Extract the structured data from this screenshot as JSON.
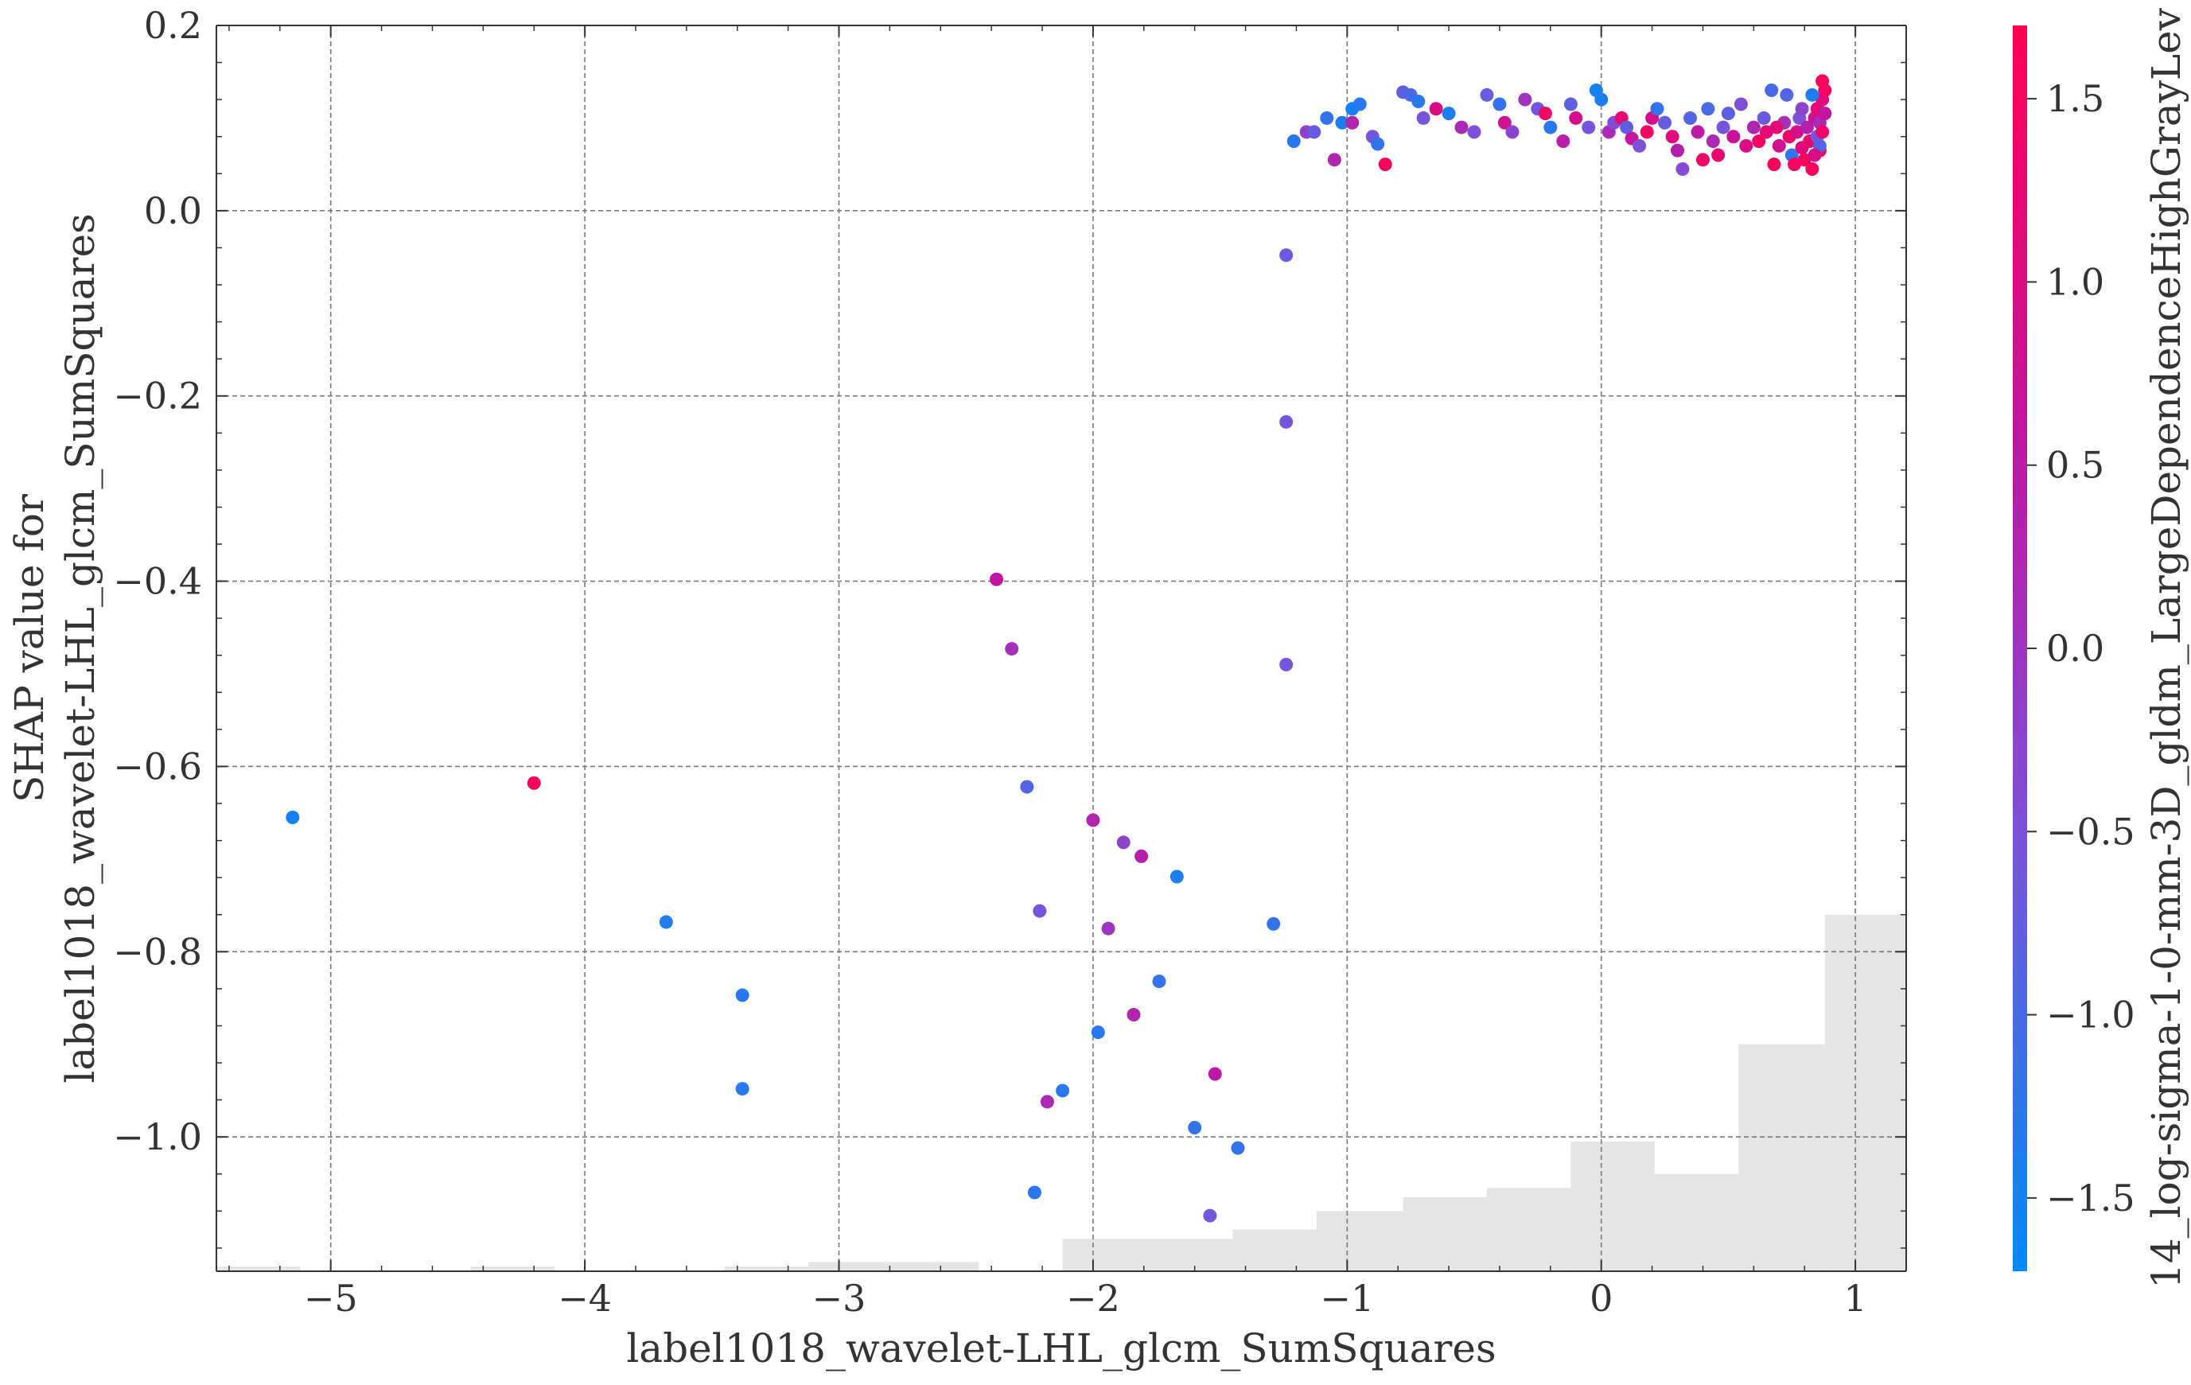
{
  "chart_data": {
    "type": "scatter",
    "title": "",
    "xlabel": "label1018_wavelet-LHL_glcm_SumSquares",
    "ylabel_line1": "SHAP value for",
    "ylabel_line2": "label1018_wavelet-LHL_glcm_SumSquares",
    "colorbar_label": "14_log-sigma-1-0-mm-3D_gldm_LargeDependenceHighGrayLev",
    "xlim": [
      -5.45,
      1.2
    ],
    "ylim": [
      -1.145,
      0.2
    ],
    "grid": true,
    "x_ticks": [
      -5,
      -4,
      -3,
      -2,
      -1,
      0,
      1
    ],
    "x_tick_labels": [
      "−5",
      "−4",
      "−3",
      "−2",
      "−1",
      "0",
      "1"
    ],
    "y_ticks": [
      0.2,
      0.0,
      -0.2,
      -0.4,
      -0.6,
      -0.8,
      -1.0
    ],
    "y_tick_labels": [
      "0.2",
      "0.0",
      "−0.2",
      "−0.4",
      "−0.6",
      "−0.8",
      "−1.0"
    ],
    "colorbar": {
      "range": [
        -1.7,
        1.7
      ],
      "ticks": [
        1.5,
        1.0,
        0.5,
        0.0,
        -0.5,
        -1.0,
        -1.5
      ],
      "tick_labels": [
        "1.5",
        "1.0",
        "0.5",
        "0.0",
        "−0.5",
        "−1.0",
        "−1.5"
      ],
      "colors": [
        "#008bfb",
        "#7c52d8",
        "#c4139e",
        "#ff0052"
      ]
    },
    "histogram": {
      "color": "#e5e5e5",
      "bin_edges": [
        -5.45,
        -5.12,
        -4.45,
        -4.12,
        -3.45,
        -3.12,
        -2.45,
        -2.12,
        -1.78,
        -1.45,
        -1.12,
        -0.78,
        -0.45,
        -0.12,
        0.21,
        0.54,
        0.88,
        1.2
      ],
      "heights_y": [
        -1.14,
        null,
        -1.14,
        null,
        -1.14,
        -1.135,
        null,
        -1.11,
        -1.11,
        -1.1,
        -1.08,
        -1.065,
        -1.055,
        -1.005,
        -1.04,
        -0.9,
        -0.76,
        -1.005
      ]
    },
    "points": [
      [
        -5.15,
        -0.655,
        -1.5
      ],
      [
        -4.2,
        -0.618,
        1.6
      ],
      [
        -3.68,
        -0.768,
        -1.4
      ],
      [
        -3.38,
        -0.847,
        -1.3
      ],
      [
        -3.38,
        -0.948,
        -1.3
      ],
      [
        -2.38,
        -0.398,
        0.6
      ],
      [
        -2.32,
        -0.473,
        0.1
      ],
      [
        -2.26,
        -0.622,
        -0.9
      ],
      [
        -2.21,
        -0.756,
        -0.6
      ],
      [
        -2.18,
        -0.962,
        0.2
      ],
      [
        -2.12,
        -0.95,
        -1.3
      ],
      [
        -2.23,
        -1.06,
        -1.3
      ],
      [
        -2.0,
        -0.658,
        0.3
      ],
      [
        -1.98,
        -0.887,
        -1.3
      ],
      [
        -1.94,
        -0.775,
        0.0
      ],
      [
        -1.88,
        -0.682,
        -0.3
      ],
      [
        -1.84,
        -0.868,
        0.3
      ],
      [
        -1.81,
        -0.697,
        0.4
      ],
      [
        -1.74,
        -0.832,
        -1.2
      ],
      [
        -1.67,
        -0.719,
        -1.4
      ],
      [
        -1.6,
        -0.99,
        -1.2
      ],
      [
        -1.54,
        -1.085,
        -0.6
      ],
      [
        -1.52,
        -0.932,
        0.5
      ],
      [
        -1.43,
        -1.012,
        -1.2
      ],
      [
        -1.29,
        -0.77,
        -1.2
      ],
      [
        -1.24,
        -0.048,
        -0.7
      ],
      [
        -1.24,
        -0.228,
        -0.6
      ],
      [
        -1.24,
        -0.49,
        -0.6
      ],
      [
        -1.21,
        0.075,
        -1.3
      ],
      [
        -1.16,
        0.085,
        -0.2
      ],
      [
        -1.13,
        0.085,
        -0.7
      ],
      [
        -1.08,
        0.1,
        -1.2
      ],
      [
        -1.05,
        0.055,
        0.3
      ],
      [
        -1.02,
        0.095,
        -1.4
      ],
      [
        -0.98,
        0.11,
        -1.5
      ],
      [
        -0.95,
        0.115,
        -1.3
      ],
      [
        -0.98,
        0.095,
        0.3
      ],
      [
        -0.9,
        0.08,
        -0.6
      ],
      [
        -0.88,
        0.072,
        -1.2
      ],
      [
        -0.85,
        0.05,
        1.6
      ],
      [
        -0.78,
        0.128,
        -0.8
      ],
      [
        -0.75,
        0.125,
        -1.0
      ],
      [
        -0.72,
        0.118,
        -1.3
      ],
      [
        -0.7,
        0.1,
        -0.6
      ],
      [
        -0.65,
        0.11,
        1.0
      ],
      [
        -0.6,
        0.105,
        -1.4
      ],
      [
        -0.55,
        0.09,
        0.2
      ],
      [
        -0.5,
        0.085,
        -0.5
      ],
      [
        -0.45,
        0.125,
        -0.7
      ],
      [
        -0.4,
        0.115,
        -1.2
      ],
      [
        -0.38,
        0.095,
        0.8
      ],
      [
        -0.35,
        0.085,
        -0.3
      ],
      [
        -0.3,
        0.12,
        0.0
      ],
      [
        -0.25,
        0.11,
        -0.6
      ],
      [
        -0.22,
        0.105,
        1.4
      ],
      [
        -0.2,
        0.09,
        -1.3
      ],
      [
        -0.15,
        0.075,
        0.4
      ],
      [
        -0.12,
        0.115,
        -0.8
      ],
      [
        -0.1,
        0.1,
        0.9
      ],
      [
        -0.05,
        0.09,
        -0.6
      ],
      [
        -0.02,
        0.13,
        -1.5
      ],
      [
        0.0,
        0.12,
        -1.4
      ],
      [
        0.03,
        0.085,
        0.2
      ],
      [
        0.05,
        0.095,
        -0.4
      ],
      [
        0.08,
        0.1,
        1.2
      ],
      [
        0.1,
        0.09,
        -0.8
      ],
      [
        0.12,
        0.078,
        0.6
      ],
      [
        0.15,
        0.07,
        -0.5
      ],
      [
        0.18,
        0.085,
        1.5
      ],
      [
        0.2,
        0.1,
        0.9
      ],
      [
        0.22,
        0.11,
        -1.2
      ],
      [
        0.25,
        0.095,
        -0.7
      ],
      [
        0.28,
        0.08,
        1.1
      ],
      [
        0.3,
        0.065,
        0.4
      ],
      [
        0.32,
        0.045,
        -0.4
      ],
      [
        0.35,
        0.1,
        -0.9
      ],
      [
        0.38,
        0.085,
        0.5
      ],
      [
        0.4,
        0.055,
        1.4
      ],
      [
        0.42,
        0.11,
        -1.0
      ],
      [
        0.44,
        0.075,
        0.2
      ],
      [
        0.46,
        0.06,
        1.3
      ],
      [
        0.48,
        0.09,
        -0.6
      ],
      [
        0.5,
        0.105,
        -0.8
      ],
      [
        0.52,
        0.08,
        0.7
      ],
      [
        0.55,
        0.115,
        -0.5
      ],
      [
        0.57,
        0.07,
        1.0
      ],
      [
        0.6,
        0.09,
        0.3
      ],
      [
        0.62,
        0.075,
        1.5
      ],
      [
        0.64,
        0.1,
        -0.7
      ],
      [
        0.65,
        0.085,
        1.2
      ],
      [
        0.67,
        0.13,
        -1.0
      ],
      [
        0.68,
        0.05,
        1.6
      ],
      [
        0.7,
        0.07,
        0.8
      ],
      [
        0.72,
        0.095,
        0.1
      ],
      [
        0.73,
        0.125,
        -0.9
      ],
      [
        0.74,
        0.08,
        1.4
      ],
      [
        0.75,
        0.06,
        -1.2
      ],
      [
        0.76,
        0.05,
        1.5
      ],
      [
        0.77,
        0.085,
        0.9
      ],
      [
        0.78,
        0.1,
        -0.5
      ],
      [
        0.79,
        0.068,
        1.1
      ],
      [
        0.8,
        0.055,
        1.6
      ],
      [
        0.81,
        0.09,
        0.4
      ],
      [
        0.82,
        0.075,
        1.3
      ],
      [
        0.83,
        0.045,
        1.6
      ],
      [
        0.84,
        0.1,
        0.7
      ],
      [
        0.85,
        0.08,
        -0.6
      ],
      [
        0.85,
        0.11,
        1.2
      ],
      [
        0.86,
        0.065,
        1.5
      ],
      [
        0.86,
        0.095,
        0.2
      ],
      [
        0.87,
        0.14,
        1.6
      ],
      [
        0.87,
        0.12,
        1.1
      ],
      [
        0.87,
        0.085,
        1.4
      ],
      [
        0.88,
        0.105,
        0.6
      ],
      [
        0.88,
        0.13,
        1.5
      ],
      [
        0.83,
        0.125,
        -1.4
      ],
      [
        0.86,
        0.07,
        -0.9
      ],
      [
        0.84,
        0.06,
        1.0
      ],
      [
        0.79,
        0.11,
        -0.3
      ],
      [
        0.69,
        0.09,
        1.2
      ]
    ]
  }
}
